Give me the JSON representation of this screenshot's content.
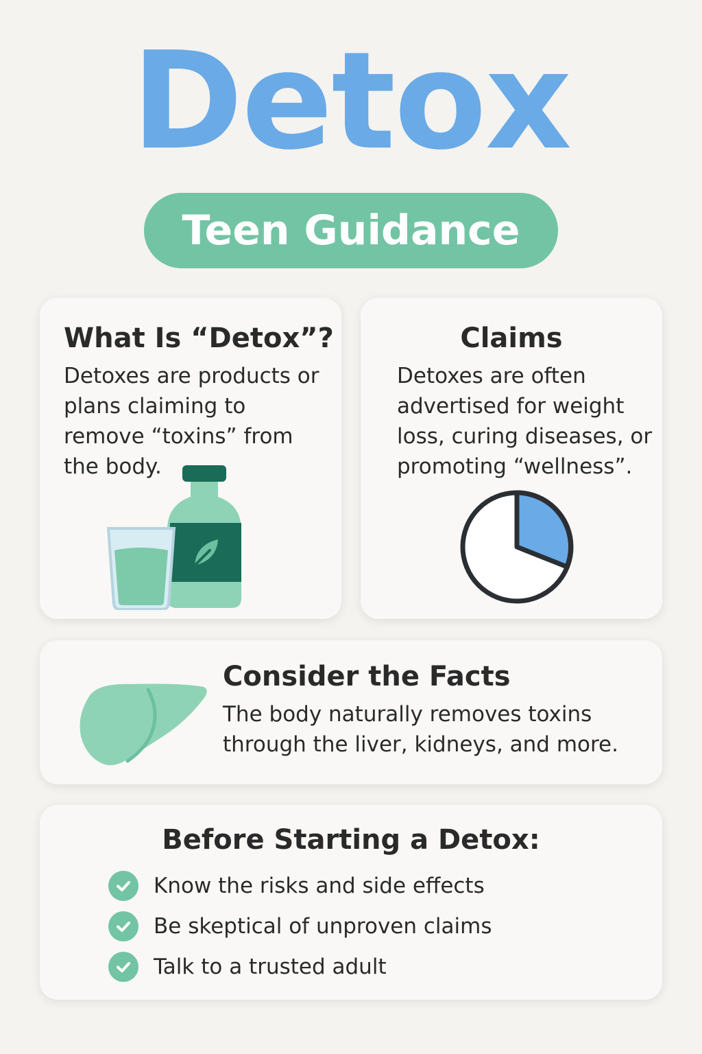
{
  "header": {
    "title": "Detox",
    "subtitle": "Teen Guidance"
  },
  "cards": {
    "what_is": {
      "heading": "What Is “Detox”?",
      "text": "Detoxes are products or plans claiming to remove “toxins” from the body.",
      "illustration_icon": "bottle-and-glass-icon"
    },
    "claims": {
      "heading": "Claims",
      "text": "Detoxes are often advertised for weight loss, curing diseases, or promoting “wellness”.",
      "illustration_icon": "pie-chart-icon"
    },
    "facts": {
      "heading": "Consider the Facts",
      "text": "The body naturally removes toxins through the liver, kidneys, and more.",
      "illustration_icon": "liver-icon"
    },
    "before": {
      "heading": "Before Starting a Detox:",
      "items": [
        {
          "label": "Know the risks and side effects",
          "icon": "check-circle-icon"
        },
        {
          "label": "Be skeptical of unproven claims",
          "icon": "check-circle-icon"
        },
        {
          "label": "Talk to a trusted adult",
          "icon": "check-circle-icon"
        }
      ]
    }
  },
  "colors": {
    "title_blue": "#6aaae6",
    "accent_green": "#72c4a4",
    "dark_green": "#1a6b58",
    "background": "#f4f3f0"
  }
}
